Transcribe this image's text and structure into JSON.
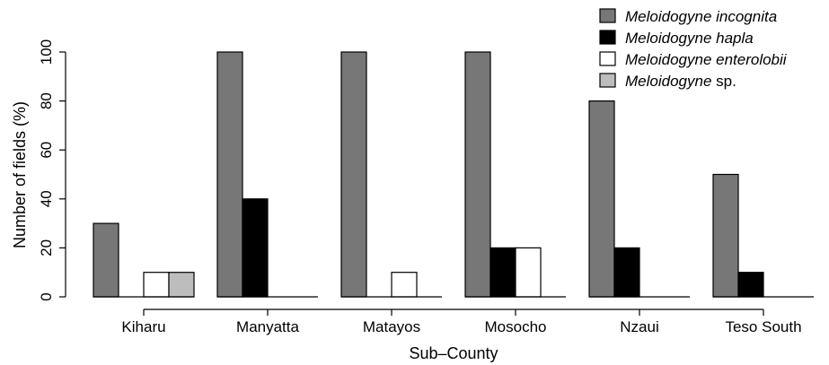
{
  "chart_data": {
    "type": "bar",
    "title": "",
    "xlabel": "Sub–County",
    "ylabel": "Number of fields (%)",
    "ylim": [
      0,
      100
    ],
    "yticks": [
      0,
      20,
      40,
      60,
      80,
      100
    ],
    "grid": false,
    "legend_position": "top-right",
    "categories": [
      "Kiharu",
      "Manyatta",
      "Matayos",
      "Mosocho",
      "Nzaui",
      "Teso South"
    ],
    "series": [
      {
        "genus": "Meloidogyne",
        "species": "incognita",
        "color": "#777777",
        "values": [
          30,
          100,
          100,
          100,
          80,
          50
        ]
      },
      {
        "genus": "Meloidogyne",
        "species": "hapla",
        "color": "#000000",
        "values": [
          0,
          40,
          0,
          20,
          20,
          10
        ]
      },
      {
        "genus": "Meloidogyne",
        "species": "enterolobii",
        "color": "#ffffff",
        "values": [
          10,
          0,
          10,
          20,
          0,
          0
        ]
      },
      {
        "genus": "Meloidogyne",
        "species": "sp.",
        "color": "#bdbdbd",
        "values": [
          10,
          0,
          0,
          0,
          0,
          0
        ]
      }
    ]
  }
}
